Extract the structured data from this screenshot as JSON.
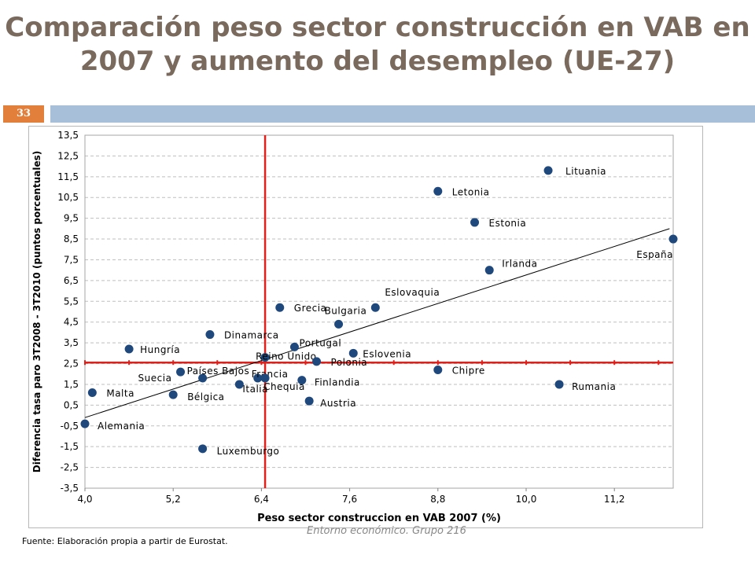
{
  "slide": {
    "title_line1": "Comparación peso sector construcción en VAB en",
    "title_line2": "2007 y aumento del desempleo (UE-27)",
    "page_number": "33",
    "footer": "Entorno económico. Grupo 216",
    "source": "Fuente: Elaboración propia a partir de Eurostat.",
    "colors": {
      "title": "#7a6a5d",
      "bar": "#a7bfd9",
      "badge": "#e17f3b",
      "point": "#1f497d",
      "refline": "#e0201b"
    }
  },
  "chart_data": {
    "type": "scatter",
    "xlabel": "Peso sector construccion en VAB 2007 (%)",
    "ylabel": "Diferencia tasa paro 3T2008 - 3T2010 (puntos porcentuales)",
    "xlim": [
      4.0,
      12.0
    ],
    "ylim": [
      -3.5,
      13.5
    ],
    "xticks": [
      4.0,
      5.2,
      6.4,
      7.6,
      8.8,
      10.0,
      11.2
    ],
    "xtick_labels": [
      "4,0",
      "5,2",
      "6,4",
      "7,6",
      "8,8",
      "10,0",
      "11,2"
    ],
    "yticks": [
      13.5,
      12.5,
      11.5,
      10.5,
      9.5,
      8.5,
      7.5,
      6.5,
      5.5,
      4.5,
      3.5,
      2.5,
      1.5,
      0.5,
      -0.5,
      -1.5,
      -2.5,
      -3.5
    ],
    "ytick_labels": [
      "13,5",
      "12,5",
      "11,5",
      "10,5",
      "9,5",
      "8,5",
      "7,5",
      "6,5",
      "5,5",
      "4,5",
      "3,5",
      "2,5",
      "1,5",
      "0,5",
      "-0,5",
      "-1,5",
      "-2,5",
      "-3,5"
    ],
    "reference_lines": {
      "x": 6.45,
      "y": 2.55
    },
    "trendline": {
      "x": [
        4.0,
        11.95
      ],
      "y": [
        -0.1,
        9.0
      ]
    },
    "points": [
      {
        "label": "Lituania",
        "x": 10.3,
        "y": 11.8
      },
      {
        "label": "Letonia",
        "x": 8.8,
        "y": 10.8
      },
      {
        "label": "Estonia",
        "x": 9.3,
        "y": 9.3
      },
      {
        "label": "España",
        "x": 12.0,
        "y": 8.5
      },
      {
        "label": "Irlanda",
        "x": 9.5,
        "y": 7.0
      },
      {
        "label": "Eslovaquia",
        "x": 7.95,
        "y": 5.2
      },
      {
        "label": "Grecia",
        "x": 6.65,
        "y": 5.2
      },
      {
        "label": "Bulgaria",
        "x": 7.45,
        "y": 4.4
      },
      {
        "label": "Dinamarca",
        "x": 5.7,
        "y": 3.9
      },
      {
        "label": "Portugal",
        "x": 6.85,
        "y": 3.3
      },
      {
        "label": "Hungría",
        "x": 4.6,
        "y": 3.2
      },
      {
        "label": "Eslovenia",
        "x": 7.65,
        "y": 3.0
      },
      {
        "label": "Reino Unido",
        "x": 6.45,
        "y": 2.8
      },
      {
        "label": "Polonia",
        "x": 7.15,
        "y": 2.6
      },
      {
        "label": "Chipre",
        "x": 8.8,
        "y": 2.2
      },
      {
        "label": "Suecia",
        "x": 5.3,
        "y": 2.1
      },
      {
        "label": "Países Bajos",
        "x": 5.6,
        "y": 1.8
      },
      {
        "label": "Francia",
        "x": 6.35,
        "y": 1.8
      },
      {
        "label": "Italia",
        "x": 6.1,
        "y": 1.5
      },
      {
        "label": "Finlandia",
        "x": 6.95,
        "y": 1.7
      },
      {
        "label": "Chequia",
        "x": 6.45,
        "y": 1.8
      },
      {
        "label": "Rumania",
        "x": 10.45,
        "y": 1.5
      },
      {
        "label": "Malta",
        "x": 4.1,
        "y": 1.1
      },
      {
        "label": "Bélgica",
        "x": 5.2,
        "y": 1.0
      },
      {
        "label": "Austria",
        "x": 7.05,
        "y": 0.7
      },
      {
        "label": "Alemania",
        "x": 4.0,
        "y": -0.4
      },
      {
        "label": "Luxemburgo",
        "x": 5.6,
        "y": -1.6
      }
    ]
  }
}
